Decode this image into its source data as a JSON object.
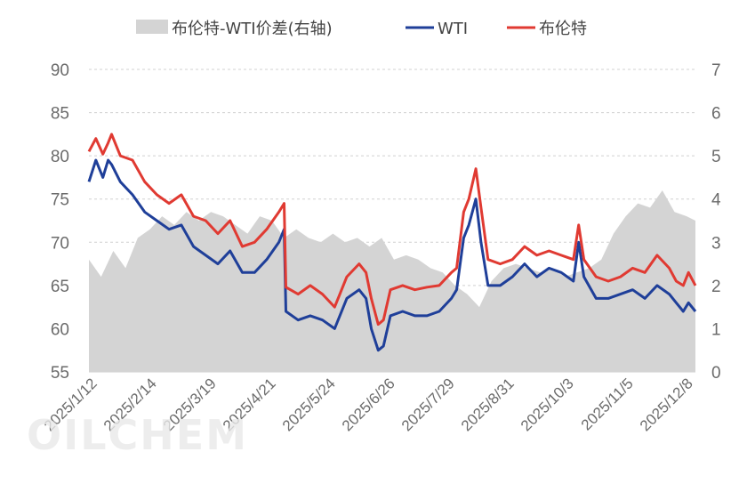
{
  "chart_data": {
    "type": "line",
    "legend": {
      "placement": "top",
      "items": [
        {
          "label": "布伦特-WTI价差(右轴)",
          "kind": "area",
          "color": "#d4d4d4"
        },
        {
          "label": "WTI",
          "kind": "line",
          "color": "#1f3f99"
        },
        {
          "label": "布伦特",
          "kind": "line",
          "color": "#e03a32"
        }
      ]
    },
    "y_left": {
      "ticks": [
        "55",
        "60",
        "65",
        "70",
        "75",
        "80",
        "85",
        "90"
      ],
      "lim": [
        55,
        90
      ]
    },
    "y_right": {
      "ticks": [
        "0",
        "1",
        "2",
        "3",
        "4",
        "5",
        "6",
        "7"
      ],
      "lim": [
        0,
        7
      ]
    },
    "x_labels": [
      "2025/1/12",
      "2025/2/14",
      "2025/3/19",
      "2025/4/21",
      "2025/5/24",
      "2025/6/26",
      "2025/7/29",
      "2025/8/31",
      "2025/10/3",
      "2025/11/5",
      "2025/12/8"
    ],
    "x_range": [
      "2025-01-02",
      "2025-12-16"
    ],
    "grid": "horizontal-dashed",
    "watermark": "OILCHEM",
    "series": [
      {
        "name": "布伦特",
        "axis": "left",
        "color": "#e03a32",
        "points": [
          [
            "2025-01-02",
            80.5
          ],
          [
            "2025-01-06",
            82.0
          ],
          [
            "2025-01-10",
            80.2
          ],
          [
            "2025-01-13",
            81.5
          ],
          [
            "2025-01-15",
            82.5
          ],
          [
            "2025-01-20",
            80.0
          ],
          [
            "2025-01-27",
            79.5
          ],
          [
            "2025-02-03",
            77.0
          ],
          [
            "2025-02-10",
            75.5
          ],
          [
            "2025-02-17",
            74.5
          ],
          [
            "2025-02-24",
            75.5
          ],
          [
            "2025-03-03",
            73.0
          ],
          [
            "2025-03-10",
            72.5
          ],
          [
            "2025-03-17",
            71.0
          ],
          [
            "2025-03-24",
            72.5
          ],
          [
            "2025-03-31",
            69.5
          ],
          [
            "2025-04-07",
            70.0
          ],
          [
            "2025-04-14",
            71.5
          ],
          [
            "2025-04-21",
            73.5
          ],
          [
            "2025-04-24",
            74.5
          ],
          [
            "2025-04-25",
            64.8
          ],
          [
            "2025-05-02",
            64.0
          ],
          [
            "2025-05-09",
            65.0
          ],
          [
            "2025-05-16",
            64.0
          ],
          [
            "2025-05-23",
            62.5
          ],
          [
            "2025-05-30",
            66.0
          ],
          [
            "2025-06-06",
            67.5
          ],
          [
            "2025-06-10",
            66.5
          ],
          [
            "2025-06-13",
            63.5
          ],
          [
            "2025-06-17",
            60.5
          ],
          [
            "2025-06-20",
            61.0
          ],
          [
            "2025-06-24",
            64.5
          ],
          [
            "2025-07-01",
            65.0
          ],
          [
            "2025-07-08",
            64.5
          ],
          [
            "2025-07-15",
            64.8
          ],
          [
            "2025-07-22",
            65.0
          ],
          [
            "2025-07-29",
            66.5
          ],
          [
            "2025-08-01",
            67.0
          ],
          [
            "2025-08-05",
            73.5
          ],
          [
            "2025-08-08",
            75.0
          ],
          [
            "2025-08-12",
            78.5
          ],
          [
            "2025-08-15",
            74.0
          ],
          [
            "2025-08-19",
            68.0
          ],
          [
            "2025-08-26",
            67.5
          ],
          [
            "2025-09-02",
            68.0
          ],
          [
            "2025-09-09",
            69.5
          ],
          [
            "2025-09-16",
            68.5
          ],
          [
            "2025-09-23",
            69.0
          ],
          [
            "2025-09-30",
            68.5
          ],
          [
            "2025-10-07",
            68.0
          ],
          [
            "2025-10-10",
            72.0
          ],
          [
            "2025-10-13",
            68.0
          ],
          [
            "2025-10-20",
            66.0
          ],
          [
            "2025-10-27",
            65.5
          ],
          [
            "2025-11-03",
            66.0
          ],
          [
            "2025-11-10",
            67.0
          ],
          [
            "2025-11-17",
            66.5
          ],
          [
            "2025-11-24",
            68.5
          ],
          [
            "2025-12-01",
            67.0
          ],
          [
            "2025-12-05",
            65.5
          ],
          [
            "2025-12-09",
            65.0
          ],
          [
            "2025-12-12",
            66.5
          ],
          [
            "2025-12-16",
            65.0
          ]
        ]
      },
      {
        "name": "WTI",
        "axis": "left",
        "color": "#1f3f99",
        "points": [
          [
            "2025-01-02",
            77.0
          ],
          [
            "2025-01-06",
            79.5
          ],
          [
            "2025-01-10",
            77.5
          ],
          [
            "2025-01-13",
            79.5
          ],
          [
            "2025-01-15",
            79.0
          ],
          [
            "2025-01-20",
            77.0
          ],
          [
            "2025-01-27",
            75.5
          ],
          [
            "2025-02-03",
            73.5
          ],
          [
            "2025-02-10",
            72.5
          ],
          [
            "2025-02-17",
            71.5
          ],
          [
            "2025-02-24",
            72.0
          ],
          [
            "2025-03-03",
            69.5
          ],
          [
            "2025-03-10",
            68.5
          ],
          [
            "2025-03-17",
            67.5
          ],
          [
            "2025-03-24",
            69.0
          ],
          [
            "2025-03-31",
            66.5
          ],
          [
            "2025-04-07",
            66.5
          ],
          [
            "2025-04-14",
            68.0
          ],
          [
            "2025-04-21",
            70.0
          ],
          [
            "2025-04-24",
            71.5
          ],
          [
            "2025-04-25",
            62.0
          ],
          [
            "2025-05-02",
            61.0
          ],
          [
            "2025-05-09",
            61.5
          ],
          [
            "2025-05-16",
            61.0
          ],
          [
            "2025-05-23",
            60.0
          ],
          [
            "2025-05-30",
            63.5
          ],
          [
            "2025-06-06",
            64.5
          ],
          [
            "2025-06-10",
            63.5
          ],
          [
            "2025-06-13",
            60.0
          ],
          [
            "2025-06-17",
            57.5
          ],
          [
            "2025-06-20",
            58.0
          ],
          [
            "2025-06-24",
            61.5
          ],
          [
            "2025-07-01",
            62.0
          ],
          [
            "2025-07-08",
            61.5
          ],
          [
            "2025-07-15",
            61.5
          ],
          [
            "2025-07-22",
            62.0
          ],
          [
            "2025-07-29",
            63.5
          ],
          [
            "2025-08-01",
            64.5
          ],
          [
            "2025-08-05",
            70.5
          ],
          [
            "2025-08-08",
            72.0
          ],
          [
            "2025-08-12",
            75.0
          ],
          [
            "2025-08-15",
            70.0
          ],
          [
            "2025-08-19",
            65.0
          ],
          [
            "2025-08-26",
            65.0
          ],
          [
            "2025-09-02",
            66.0
          ],
          [
            "2025-09-09",
            67.5
          ],
          [
            "2025-09-16",
            66.0
          ],
          [
            "2025-09-23",
            67.0
          ],
          [
            "2025-09-30",
            66.5
          ],
          [
            "2025-10-07",
            65.5
          ],
          [
            "2025-10-10",
            70.0
          ],
          [
            "2025-10-13",
            66.0
          ],
          [
            "2025-10-20",
            63.5
          ],
          [
            "2025-10-27",
            63.5
          ],
          [
            "2025-11-03",
            64.0
          ],
          [
            "2025-11-10",
            64.5
          ],
          [
            "2025-11-17",
            63.5
          ],
          [
            "2025-11-24",
            65.0
          ],
          [
            "2025-12-01",
            64.0
          ],
          [
            "2025-12-05",
            63.0
          ],
          [
            "2025-12-09",
            62.0
          ],
          [
            "2025-12-12",
            63.0
          ],
          [
            "2025-12-16",
            62.0
          ]
        ]
      },
      {
        "name": "布伦特-WTI价差(右轴)",
        "axis": "right",
        "color": "#d4d4d4",
        "type": "area",
        "points": [
          [
            "2025-01-02",
            2.6
          ],
          [
            "2025-01-09",
            2.2
          ],
          [
            "2025-01-16",
            2.8
          ],
          [
            "2025-01-23",
            2.4
          ],
          [
            "2025-01-30",
            3.1
          ],
          [
            "2025-02-06",
            3.3
          ],
          [
            "2025-02-13",
            3.6
          ],
          [
            "2025-02-20",
            3.4
          ],
          [
            "2025-02-27",
            3.7
          ],
          [
            "2025-03-06",
            3.5
          ],
          [
            "2025-03-13",
            3.7
          ],
          [
            "2025-03-20",
            3.6
          ],
          [
            "2025-03-27",
            3.4
          ],
          [
            "2025-04-03",
            3.2
          ],
          [
            "2025-04-10",
            3.6
          ],
          [
            "2025-04-17",
            3.5
          ],
          [
            "2025-04-24",
            3.1
          ],
          [
            "2025-05-01",
            3.3
          ],
          [
            "2025-05-08",
            3.1
          ],
          [
            "2025-05-15",
            3.0
          ],
          [
            "2025-05-22",
            3.2
          ],
          [
            "2025-05-29",
            3.0
          ],
          [
            "2025-06-05",
            3.1
          ],
          [
            "2025-06-12",
            2.9
          ],
          [
            "2025-06-19",
            3.1
          ],
          [
            "2025-06-26",
            2.6
          ],
          [
            "2025-07-03",
            2.7
          ],
          [
            "2025-07-10",
            2.6
          ],
          [
            "2025-07-17",
            2.4
          ],
          [
            "2025-07-24",
            2.3
          ],
          [
            "2025-07-31",
            2.0
          ],
          [
            "2025-08-07",
            1.8
          ],
          [
            "2025-08-14",
            1.5
          ],
          [
            "2025-08-21",
            2.1
          ],
          [
            "2025-08-28",
            2.4
          ],
          [
            "2025-09-04",
            2.5
          ],
          [
            "2025-09-11",
            2.4
          ],
          [
            "2025-09-18",
            2.3
          ],
          [
            "2025-09-25",
            2.4
          ],
          [
            "2025-10-02",
            2.2
          ],
          [
            "2025-10-09",
            2.3
          ],
          [
            "2025-10-16",
            2.4
          ],
          [
            "2025-10-23",
            2.6
          ],
          [
            "2025-10-30",
            3.2
          ],
          [
            "2025-11-06",
            3.6
          ],
          [
            "2025-11-13",
            3.9
          ],
          [
            "2025-11-20",
            3.8
          ],
          [
            "2025-11-27",
            4.2
          ],
          [
            "2025-12-04",
            3.7
          ],
          [
            "2025-12-11",
            3.6
          ],
          [
            "2025-12-16",
            3.5
          ]
        ]
      }
    ]
  }
}
